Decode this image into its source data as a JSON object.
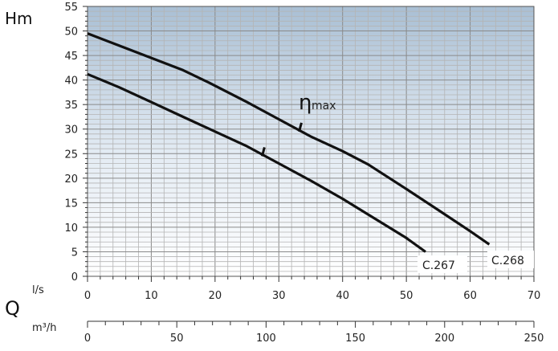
{
  "chart_data": {
    "type": "line",
    "ylabel": "Hm",
    "xlabel_symbol": "Q",
    "x_unit_primary": "l/s",
    "x_unit_secondary": "m³/h",
    "efficiency_label": {
      "symbol": "η",
      "text": "max"
    },
    "xlim": [
      0,
      70
    ],
    "ylim": [
      0,
      55
    ],
    "x2lim": [
      0,
      250
    ],
    "x_ticks": [
      "0",
      "10",
      "20",
      "30",
      "40",
      "50",
      "60",
      "70"
    ],
    "y_ticks": [
      "0",
      "5",
      "10",
      "15",
      "20",
      "25",
      "30",
      "35",
      "40",
      "45",
      "50",
      "55"
    ],
    "x2_ticks": [
      "0",
      "50",
      "100",
      "150",
      "200",
      "250"
    ],
    "grid": true,
    "series": [
      {
        "name": "C.267",
        "x": [
          0,
          5,
          10,
          15,
          20,
          25,
          30,
          35,
          40,
          45,
          50,
          53
        ],
        "y": [
          41.2,
          38.5,
          35.5,
          32.5,
          29.5,
          26.5,
          23,
          19.5,
          15.8,
          11.8,
          7.8,
          5
        ],
        "eta_max": {
          "x": 27.5,
          "y": 25.3
        }
      },
      {
        "name": "C.268",
        "x": [
          0,
          5,
          10,
          15,
          19,
          25,
          30,
          35,
          40,
          44,
          50,
          55,
          60,
          63
        ],
        "y": [
          49.5,
          47,
          44.5,
          42,
          39.5,
          35.5,
          32,
          28.5,
          25.5,
          22.8,
          17.8,
          13.5,
          9.2,
          6.5
        ],
        "eta_max": {
          "x": 33.3,
          "y": 30.3
        }
      }
    ]
  }
}
